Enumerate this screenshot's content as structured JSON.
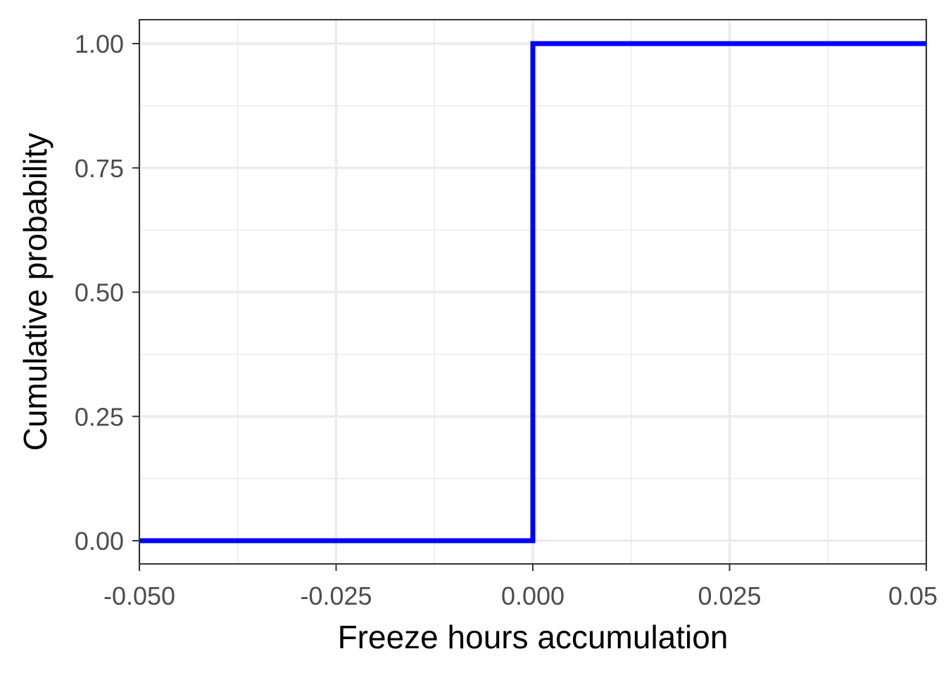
{
  "chart_data": {
    "type": "line",
    "step": true,
    "xlabel": "Freeze hours accumulation",
    "ylabel": "Cumulative probability",
    "xlim": [
      -0.05,
      0.05
    ],
    "ylim": [
      0,
      1
    ],
    "x_ticks": [
      -0.05,
      -0.025,
      0.0,
      0.025,
      0.05
    ],
    "x_tick_labels": [
      "-0.050",
      "-0.025",
      "0.000",
      "0.025",
      "0.05"
    ],
    "y_ticks": [
      0,
      0.25,
      0.5,
      0.75,
      1.0
    ],
    "y_tick_labels": [
      "0.00",
      "0.25",
      "0.50",
      "0.75",
      "1.00"
    ],
    "grid": true,
    "series": [
      {
        "color": "#0000ff",
        "points": [
          [
            -0.05,
            0
          ],
          [
            0.0,
            0
          ],
          [
            0.0,
            1
          ],
          [
            0.05,
            1
          ]
        ]
      }
    ]
  }
}
